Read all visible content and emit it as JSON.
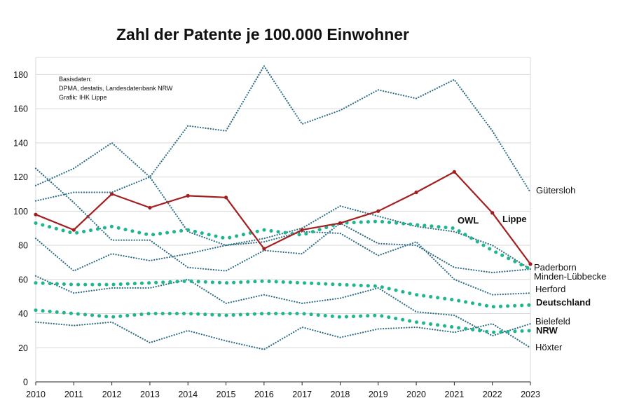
{
  "chart_data": {
    "type": "line",
    "title": "Zahl der Patente je 100.000 Einwohner",
    "notes": [
      "Basisdaten:",
      "DPMA, destatis, Landesdatenbank NRW",
      "Grafik: IHK Lippe"
    ],
    "x": [
      2010,
      2011,
      2012,
      2013,
      2014,
      2015,
      2016,
      2017,
      2018,
      2019,
      2020,
      2021,
      2022,
      2023
    ],
    "ylim": [
      0,
      190
    ],
    "yticks": [
      0,
      20,
      40,
      60,
      80,
      100,
      120,
      140,
      160,
      180
    ],
    "grid": "horizontal",
    "series": [
      {
        "name": "Gütersloh",
        "values": [
          115,
          125,
          140,
          120,
          150,
          147,
          185,
          151,
          159,
          171,
          166,
          177,
          147,
          111
        ],
        "color": "#2f6f86",
        "style": "dotted"
      },
      {
        "name": "Paderborn",
        "values": [
          106,
          111,
          111,
          120,
          88,
          80,
          84,
          90,
          103,
          97,
          91,
          88,
          80,
          66
        ],
        "color": "#2f6f86",
        "style": "dotted"
      },
      {
        "name": "Minden-Lübbecke",
        "values": [
          125,
          105,
          83,
          83,
          67,
          65,
          77,
          75,
          93,
          81,
          80,
          67,
          64,
          66
        ],
        "color": "#2f6f86",
        "style": "dotted"
      },
      {
        "name": "Herford",
        "values": [
          84,
          65,
          75,
          71,
          75,
          80,
          82,
          88,
          87,
          74,
          82,
          60,
          51,
          52
        ],
        "color": "#2f6f86",
        "style": "dotted"
      },
      {
        "name": "Bielefeld",
        "values": [
          62,
          52,
          55,
          55,
          60,
          46,
          51,
          46,
          49,
          55,
          41,
          39,
          27,
          34
        ],
        "color": "#2f6f86",
        "style": "dotted"
      },
      {
        "name": "Höxter",
        "values": [
          35,
          33,
          35,
          23,
          30,
          24,
          19,
          32,
          26,
          31,
          32,
          29,
          34,
          20
        ],
        "color": "#2f6f86",
        "style": "dotted"
      },
      {
        "name": "Lippe",
        "values": [
          98,
          89,
          110,
          102,
          109,
          108,
          78,
          89,
          93,
          100,
          111,
          123,
          99,
          69
        ],
        "color": "#a31f1f",
        "style": "solid-markers"
      },
      {
        "name": "OWL",
        "values": [
          93,
          87,
          91,
          86,
          89,
          84,
          89,
          86,
          93,
          94,
          92,
          90,
          77,
          66
        ],
        "color": "#1fb58d",
        "style": "dots"
      },
      {
        "name": "Deutschland",
        "values": [
          58,
          57,
          57,
          58,
          59,
          58,
          59,
          58,
          57,
          56,
          51,
          48,
          44,
          45
        ],
        "color": "#1fb58d",
        "style": "dots"
      },
      {
        "name": "NRW",
        "values": [
          42,
          40,
          38,
          40,
          40,
          39,
          40,
          40,
          38,
          39,
          35,
          32,
          29,
          30
        ],
        "color": "#1fb58d",
        "style": "dots"
      }
    ]
  }
}
